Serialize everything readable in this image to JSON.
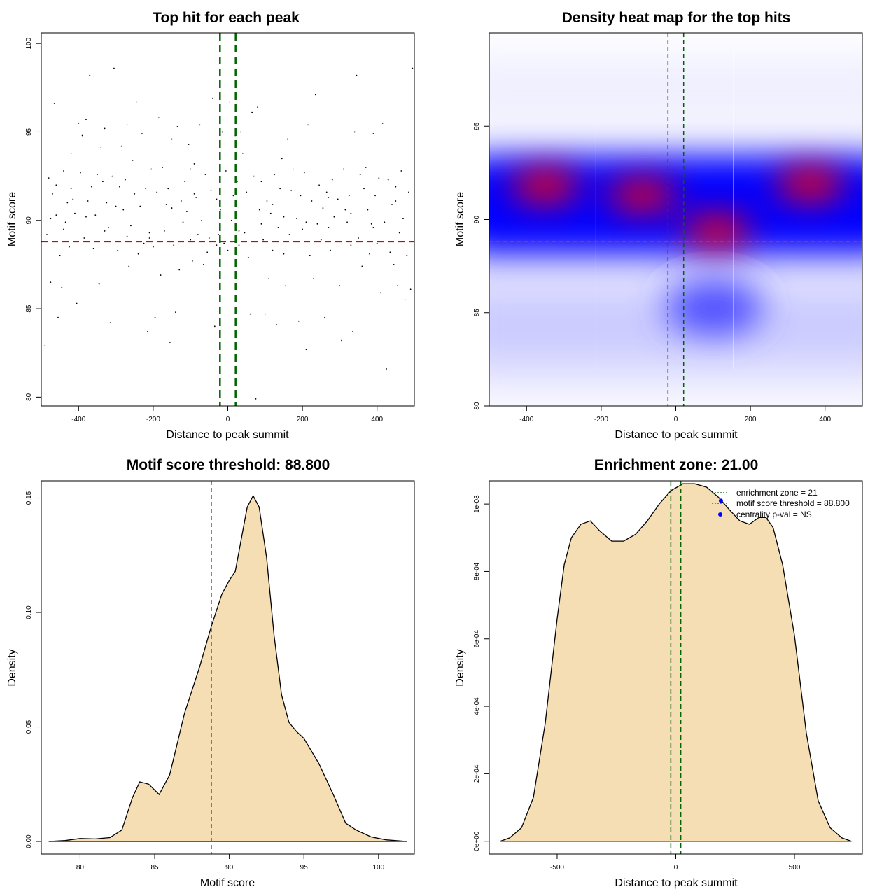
{
  "chart_data": [
    {
      "type": "scatter",
      "title": "Top hit for each peak",
      "xlabel": "Distance to peak summit",
      "ylabel": "Motif score",
      "xlim": [
        -500,
        500
      ],
      "ylim": [
        79.5,
        100.6
      ],
      "x_ticks": [
        -400,
        -200,
        0,
        200,
        400
      ],
      "y_ticks": [
        80,
        85,
        90,
        95,
        100
      ],
      "point_color": "#000000",
      "threshold_score": 88.8,
      "threshold_color": "#dd0000",
      "zone_lines": [
        -21,
        21
      ],
      "zone_color": "#006400",
      "points": [
        [
          -490,
          82.9
        ],
        [
          -485,
          89.2
        ],
        [
          -480,
          92.4
        ],
        [
          -475,
          90.1
        ],
        [
          -470,
          91.5
        ],
        [
          -465,
          96.6
        ],
        [
          -460,
          92.0
        ],
        [
          -455,
          84.5
        ],
        [
          -450,
          88.0
        ],
        [
          -445,
          86.2
        ],
        [
          -440,
          92.8
        ],
        [
          -435,
          89.9
        ],
        [
          -430,
          91.0
        ],
        [
          -425,
          88.5
        ],
        [
          -420,
          93.8
        ],
        [
          -415,
          91.2
        ],
        [
          -410,
          90.4
        ],
        [
          -405,
          85.3
        ],
        [
          -400,
          95.5
        ],
        [
          -395,
          92.7
        ],
        [
          -390,
          94.8
        ],
        [
          -385,
          89.0
        ],
        [
          -380,
          95.7
        ],
        [
          -375,
          91.1
        ],
        [
          -370,
          98.2
        ],
        [
          -365,
          91.9
        ],
        [
          -360,
          88.4
        ],
        [
          -355,
          90.3
        ],
        [
          -350,
          92.6
        ],
        [
          -345,
          86.4
        ],
        [
          -340,
          94.1
        ],
        [
          -335,
          92.2
        ],
        [
          -330,
          95.2
        ],
        [
          -325,
          91.0
        ],
        [
          -320,
          89.6
        ],
        [
          -315,
          84.2
        ],
        [
          -310,
          92.5
        ],
        [
          -305,
          98.6
        ],
        [
          -300,
          90.8
        ],
        [
          -295,
          88.3
        ],
        [
          -290,
          91.9
        ],
        [
          -285,
          94.2
        ],
        [
          -280,
          90.6
        ],
        [
          -275,
          92.3
        ],
        [
          -270,
          95.4
        ],
        [
          -265,
          87.4
        ],
        [
          -260,
          89.7
        ],
        [
          -255,
          93.4
        ],
        [
          -250,
          91.5
        ],
        [
          -245,
          96.7
        ],
        [
          -240,
          88.1
        ],
        [
          -235,
          90.8
        ],
        [
          -230,
          94.9
        ],
        [
          -225,
          88.7
        ],
        [
          -220,
          91.8
        ],
        [
          -215,
          83.7
        ],
        [
          -210,
          89.3
        ],
        [
          -205,
          92.9
        ],
        [
          -200,
          88.5
        ],
        [
          -195,
          84.5
        ],
        [
          -190,
          91.6
        ],
        [
          -185,
          95.8
        ],
        [
          -180,
          86.9
        ],
        [
          -175,
          93.0
        ],
        [
          -170,
          89.4
        ],
        [
          -165,
          90.9
        ],
        [
          -160,
          91.8
        ],
        [
          -155,
          83.1
        ],
        [
          -150,
          94.6
        ],
        [
          -145,
          88.6
        ],
        [
          -140,
          84.8
        ],
        [
          -135,
          95.3
        ],
        [
          -130,
          87.2
        ],
        [
          -125,
          91.1
        ],
        [
          -120,
          89.9
        ],
        [
          -115,
          92.2
        ],
        [
          -110,
          90.5
        ],
        [
          -105,
          94.3
        ],
        [
          -100,
          88.9
        ],
        [
          -95,
          87.7
        ],
        [
          -90,
          93.2
        ],
        [
          -85,
          91.3
        ],
        [
          -80,
          89.2
        ],
        [
          -75,
          95.4
        ],
        [
          -70,
          90.0
        ],
        [
          -65,
          87.5
        ],
        [
          -60,
          92.6
        ],
        [
          -55,
          88.2
        ],
        [
          -50,
          89.0
        ],
        [
          -45,
          91.7
        ],
        [
          -40,
          96.9
        ],
        [
          -35,
          84.0
        ],
        [
          -30,
          91.2
        ],
        [
          -25,
          89.2
        ],
        [
          -20,
          90.6
        ],
        [
          -15,
          95.0
        ],
        [
          -10,
          88.7
        ],
        [
          -5,
          92.8
        ],
        [
          0,
          88.3
        ],
        [
          5,
          96.7
        ],
        [
          10,
          90.0
        ],
        [
          15,
          91.4
        ],
        [
          20,
          94.8
        ],
        [
          25,
          92.2
        ],
        [
          30,
          89.4
        ],
        [
          35,
          95.0
        ],
        [
          40,
          93.8
        ],
        [
          45,
          89.3
        ],
        [
          50,
          91.6
        ],
        [
          55,
          87.9
        ],
        [
          60,
          84.7
        ],
        [
          65,
          96.1
        ],
        [
          70,
          92.5
        ],
        [
          75,
          79.9
        ],
        [
          80,
          96.4
        ],
        [
          85,
          90.6
        ],
        [
          90,
          92.2
        ],
        [
          95,
          88.9
        ],
        [
          100,
          84.7
        ],
        [
          105,
          91.1
        ],
        [
          110,
          86.7
        ],
        [
          115,
          90.4
        ],
        [
          120,
          88.3
        ],
        [
          125,
          92.6
        ],
        [
          130,
          84.1
        ],
        [
          135,
          89.6
        ],
        [
          140,
          91.8
        ],
        [
          145,
          93.5
        ],
        [
          150,
          88.1
        ],
        [
          155,
          86.3
        ],
        [
          160,
          94.6
        ],
        [
          165,
          89.2
        ],
        [
          170,
          91.7
        ],
        [
          175,
          92.9
        ],
        [
          180,
          88.8
        ],
        [
          185,
          90.1
        ],
        [
          190,
          84.3
        ],
        [
          195,
          91.4
        ],
        [
          200,
          89.5
        ],
        [
          205,
          92.7
        ],
        [
          210,
          82.7
        ],
        [
          215,
          95.4
        ],
        [
          220,
          88.0
        ],
        [
          225,
          91.1
        ],
        [
          230,
          86.7
        ],
        [
          235,
          97.1
        ],
        [
          240,
          89.8
        ],
        [
          245,
          92.0
        ],
        [
          250,
          88.9
        ],
        [
          255,
          90.7
        ],
        [
          260,
          84.5
        ],
        [
          265,
          91.6
        ],
        [
          270,
          89.6
        ],
        [
          275,
          88.3
        ],
        [
          280,
          92.3
        ],
        [
          285,
          90.2
        ],
        [
          290,
          88.8
        ],
        [
          295,
          91.2
        ],
        [
          300,
          86.3
        ],
        [
          305,
          83.2
        ],
        [
          310,
          92.9
        ],
        [
          315,
          90.6
        ],
        [
          320,
          89.9
        ],
        [
          325,
          91.4
        ],
        [
          330,
          88.6
        ],
        [
          335,
          83.7
        ],
        [
          340,
          95.0
        ],
        [
          345,
          98.2
        ],
        [
          350,
          89.0
        ],
        [
          355,
          92.6
        ],
        [
          360,
          87.4
        ],
        [
          365,
          91.8
        ],
        [
          370,
          93.0
        ],
        [
          375,
          90.6
        ],
        [
          380,
          88.1
        ],
        [
          385,
          89.8
        ],
        [
          390,
          94.9
        ],
        [
          395,
          91.4
        ],
        [
          400,
          88.7
        ],
        [
          405,
          92.4
        ],
        [
          410,
          85.9
        ],
        [
          415,
          95.5
        ],
        [
          420,
          89.9
        ],
        [
          425,
          81.6
        ],
        [
          430,
          92.3
        ],
        [
          435,
          88.2
        ],
        [
          440,
          90.9
        ],
        [
          445,
          87.5
        ],
        [
          450,
          91.9
        ],
        [
          455,
          86.3
        ],
        [
          460,
          89.3
        ],
        [
          465,
          92.8
        ],
        [
          470,
          90.1
        ],
        [
          475,
          85.5
        ],
        [
          480,
          88.0
        ],
        [
          485,
          91.6
        ],
        [
          490,
          86.1
        ],
        [
          495,
          98.6
        ],
        [
          500,
          90.7
        ],
        [
          -475,
          86.5
        ],
        [
          -460,
          90.3
        ],
        [
          -420,
          91.8
        ],
        [
          -380,
          90.2
        ],
        [
          -330,
          89.4
        ],
        [
          -270,
          89.1
        ],
        [
          -210,
          89.0
        ],
        [
          -150,
          90.7
        ],
        [
          -90,
          91.5
        ],
        [
          -30,
          88.6
        ],
        [
          30,
          88.6
        ],
        [
          90,
          89.8
        ],
        [
          150,
          90.2
        ],
        [
          210,
          89.9
        ],
        [
          270,
          91.3
        ],
        [
          330,
          90.4
        ],
        [
          390,
          89.6
        ],
        [
          450,
          91.1
        ],
        [
          -440,
          89.5
        ],
        [
          -100,
          92.9
        ],
        [
          120,
          90.9
        ]
      ]
    },
    {
      "type": "heatmap",
      "title": "Density heat map for the top hits",
      "xlabel": "Distance to peak summit",
      "ylabel": "Motif score",
      "xlim": [
        -500,
        500
      ],
      "ylim": [
        80,
        100
      ],
      "x_ticks": [
        -400,
        -200,
        0,
        200,
        400
      ],
      "y_ticks": [
        80,
        85,
        90,
        95
      ],
      "threshold_score": 88.8,
      "zone_lines": [
        -21,
        21
      ],
      "hot_spots": [
        {
          "x": -350,
          "y": 91.8,
          "intensity": 1.0
        },
        {
          "x": -90,
          "y": 91.3,
          "intensity": 0.95
        },
        {
          "x": 110,
          "y": 89.4,
          "intensity": 0.95
        },
        {
          "x": 360,
          "y": 91.9,
          "intensity": 1.0
        }
      ]
    },
    {
      "type": "area",
      "title": "Motif score threshold: 88.800",
      "xlabel": "Motif score",
      "ylabel": "Density",
      "xlim": [
        77.4,
        102.4
      ],
      "ylim": [
        -0.0055,
        0.1575
      ],
      "x_ticks": [
        80,
        85,
        90,
        95,
        100
      ],
      "y_ticks": [
        0.0,
        0.05,
        0.1,
        0.15
      ],
      "y_tick_labels": [
        "0.00",
        "0.05",
        "0.10",
        "0.15"
      ],
      "fill_color": "#f5deb3",
      "threshold_score": 88.8,
      "curve": [
        [
          77.9,
          0.0
        ],
        [
          79.0,
          0.0004
        ],
        [
          80.0,
          0.0013
        ],
        [
          81.0,
          0.0011
        ],
        [
          82.0,
          0.0017
        ],
        [
          82.8,
          0.005
        ],
        [
          83.5,
          0.019
        ],
        [
          84.0,
          0.026
        ],
        [
          84.6,
          0.025
        ],
        [
          85.3,
          0.0205
        ],
        [
          86.0,
          0.029
        ],
        [
          87.0,
          0.056
        ],
        [
          88.0,
          0.076
        ],
        [
          88.8,
          0.094
        ],
        [
          89.5,
          0.108
        ],
        [
          90.0,
          0.114
        ],
        [
          90.4,
          0.118
        ],
        [
          90.8,
          0.132
        ],
        [
          91.2,
          0.146
        ],
        [
          91.6,
          0.151
        ],
        [
          92.0,
          0.146
        ],
        [
          92.5,
          0.124
        ],
        [
          93.0,
          0.09
        ],
        [
          93.5,
          0.064
        ],
        [
          94.0,
          0.052
        ],
        [
          94.5,
          0.048
        ],
        [
          95.0,
          0.045
        ],
        [
          96.0,
          0.034
        ],
        [
          97.0,
          0.02
        ],
        [
          97.8,
          0.008
        ],
        [
          98.5,
          0.005
        ],
        [
          99.5,
          0.002
        ],
        [
          100.5,
          0.0007
        ],
        [
          101.9,
          0.0
        ]
      ]
    },
    {
      "type": "area",
      "title": "Enrichment zone: 21.00",
      "xlabel": "Distance to peak summit",
      "ylabel": "Density",
      "xlim": [
        -786,
        786
      ],
      "ylim": [
        -3.8e-05,
        0.0010688
      ],
      "x_ticks": [
        -500,
        0,
        500
      ],
      "y_ticks": [
        0,
        0.0002,
        0.0004,
        0.0006,
        0.0008,
        0.001
      ],
      "y_tick_labels": [
        "0e+00",
        "2e-04",
        "4e-04",
        "6e-04",
        "8e-04",
        "1e-03"
      ],
      "fill_color": "#f5deb3",
      "zone_lines": [
        -21,
        21
      ],
      "centrality_point": {
        "x": 190,
        "y": 0.00101,
        "color": "#0000ff"
      },
      "curve": [
        [
          -740,
          0.0
        ],
        [
          -700,
          1e-05
        ],
        [
          -650,
          4e-05
        ],
        [
          -600,
          0.00013
        ],
        [
          -550,
          0.00035
        ],
        [
          -500,
          0.00066
        ],
        [
          -470,
          0.00082
        ],
        [
          -440,
          0.0009
        ],
        [
          -400,
          0.00094
        ],
        [
          -360,
          0.00095
        ],
        [
          -320,
          0.00092
        ],
        [
          -270,
          0.00089
        ],
        [
          -220,
          0.00089
        ],
        [
          -170,
          0.00091
        ],
        [
          -120,
          0.00095
        ],
        [
          -70,
          0.001
        ],
        [
          -20,
          0.00104
        ],
        [
          30,
          0.00106
        ],
        [
          80,
          0.00106
        ],
        [
          130,
          0.00105
        ],
        [
          180,
          0.00102
        ],
        [
          230,
          0.00098
        ],
        [
          270,
          0.00095
        ],
        [
          310,
          0.00094
        ],
        [
          350,
          0.00096
        ],
        [
          380,
          0.00096
        ],
        [
          410,
          0.00093
        ],
        [
          450,
          0.00082
        ],
        [
          500,
          0.00061
        ],
        [
          550,
          0.00032
        ],
        [
          600,
          0.00012
        ],
        [
          650,
          4e-05
        ],
        [
          700,
          1e-05
        ],
        [
          740,
          0.0
        ]
      ],
      "legend": [
        {
          "label": "enrichment zone = 21",
          "color": "#006400",
          "style": "dotted"
        },
        {
          "label": "motif score threshold = 88.800",
          "color": "#dd0000",
          "style": "dotted"
        },
        {
          "label": "centrality p-val = NS",
          "color": "#0000ff",
          "style": "point"
        }
      ]
    }
  ]
}
